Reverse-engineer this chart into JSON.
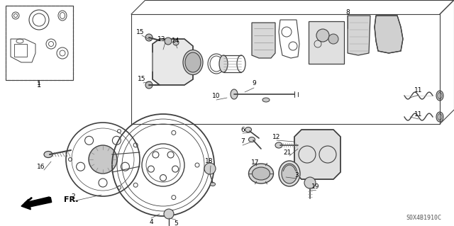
{
  "bg_color": "#ffffff",
  "lc": "#404040",
  "diagram_code": "S0X4B1910C",
  "figsize": [
    6.4,
    3.19
  ],
  "dpi": 100
}
